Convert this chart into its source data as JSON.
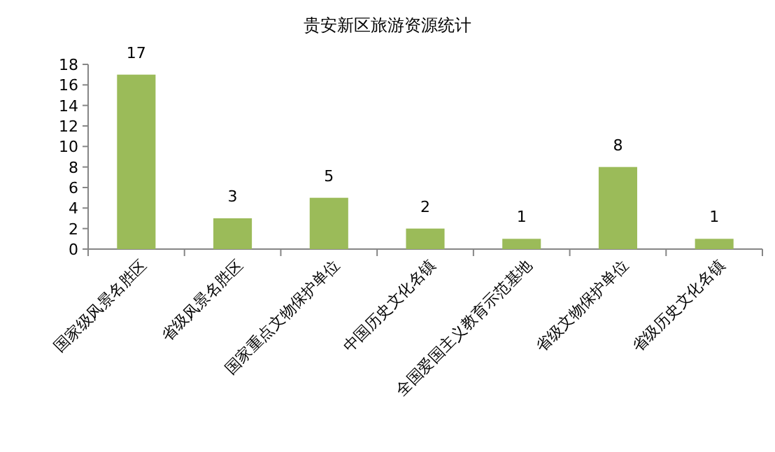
{
  "chart_data": {
    "type": "bar",
    "title": "贵安新区旅游资源统计",
    "categories": [
      "国家级风景名胜区",
      "省级风景名胜区",
      "国家重点文物保护单位",
      "中国历史文化名镇",
      "全国爱国主义教育示范基地",
      "省级文物保护单位",
      "省级历史文化名镇"
    ],
    "values": [
      17,
      3,
      5,
      2,
      1,
      8,
      1
    ],
    "color": "#9bbb59",
    "ylim": [
      0,
      18
    ],
    "yticks": [
      0,
      2,
      4,
      6,
      8,
      10,
      12,
      14,
      16,
      18
    ],
    "data_labels": true
  }
}
